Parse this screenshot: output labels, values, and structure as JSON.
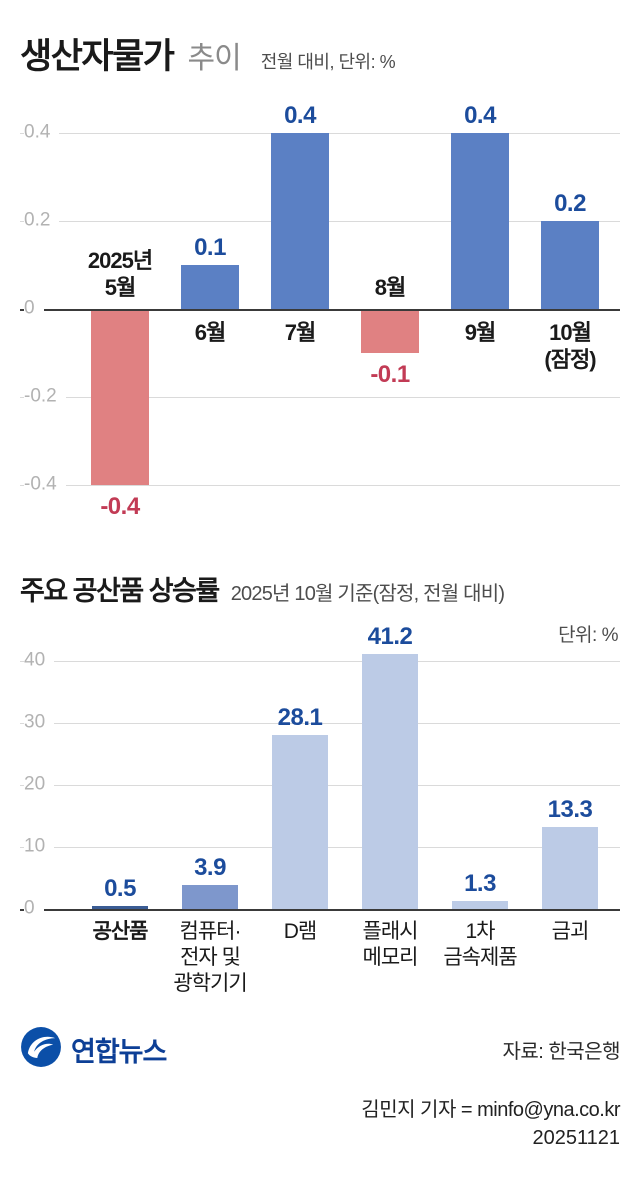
{
  "header": {
    "title_strong": "생산자물가",
    "title_light": "추이",
    "subtitle": "전월 대비, 단위: %"
  },
  "chart2_header": {
    "title": "주요 공산품 상승률",
    "subtitle": "2025년 10월 기준(잠정, 전월 대비)",
    "unit": "단위: %"
  },
  "chart_data": [
    {
      "type": "bar",
      "title": "생산자물가 추이",
      "subtitle": "전월 대비, 단위: %",
      "categories": [
        "2025년 5월",
        "6월",
        "7월",
        "8월",
        "9월",
        "10월(잠정)"
      ],
      "category_lines": [
        [
          "2025년",
          "5월"
        ],
        [
          "6월"
        ],
        [
          "7월"
        ],
        [
          "8월"
        ],
        [
          "9월"
        ],
        [
          "10월",
          "(잠정)"
        ]
      ],
      "values": [
        -0.4,
        0.1,
        0.4,
        -0.1,
        0.4,
        0.2
      ],
      "yticks": [
        0.4,
        0.2,
        0,
        -0.2,
        -0.4
      ],
      "ylim": [
        -0.4,
        0.4
      ],
      "grid": true,
      "legend": false,
      "colors": {
        "positive": "#5b80c4",
        "negative": "#e08182",
        "value_positive": "#1c4c9c",
        "value_negative": "#c23b55"
      }
    },
    {
      "type": "bar",
      "title": "주요 공산품 상승률",
      "subtitle": "2025년 10월 기준(잠정, 전월 대비)",
      "unit": "단위: %",
      "categories": [
        "공산품",
        "컴퓨터·전자 및 광학기기",
        "D램",
        "플래시 메모리",
        "1차 금속제품",
        "금괴"
      ],
      "category_lines": [
        [
          "공산품"
        ],
        [
          "컴퓨터·",
          "전자 및",
          "광학기기"
        ],
        [
          "D램"
        ],
        [
          "플래시",
          "메모리"
        ],
        [
          "1차",
          "금속제품"
        ],
        [
          "금괴"
        ]
      ],
      "values": [
        0.5,
        3.9,
        28.1,
        41.2,
        1.3,
        13.3
      ],
      "yticks": [
        40,
        30,
        20,
        10,
        0
      ],
      "ylim": [
        0,
        40
      ],
      "grid": true,
      "legend": false,
      "bar_colors": [
        "#3a5c94",
        "#7e97cc",
        "#bccbe6",
        "#bccbe6",
        "#bccbe6",
        "#bccbe6"
      ],
      "value_color": "#1c4c9c",
      "bold_categories": [
        0
      ]
    }
  ],
  "footer": {
    "logo_text": "연합뉴스",
    "source": "자료: 한국은행",
    "byline": "김민지 기자 = minfo@yna.co.kr",
    "date": "20251121"
  }
}
